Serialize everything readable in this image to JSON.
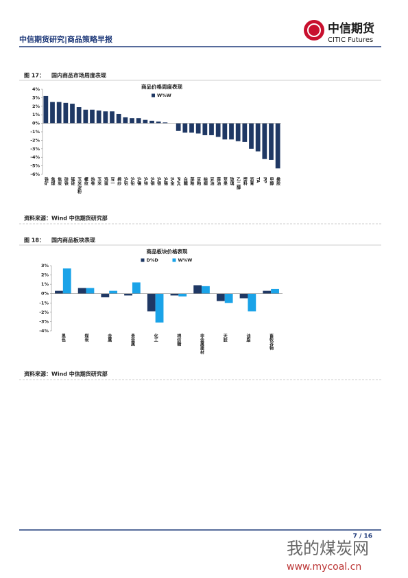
{
  "header": {
    "title": "中信期货研究|商品策略早报",
    "logo_cn": "中信期货",
    "logo_en": "CITIC Futures"
  },
  "figures": [
    {
      "label": "图 17：",
      "caption": "国内商品市场周度表现",
      "source": "资料来源：Wind 中信期货研究部"
    },
    {
      "label": "图 18：",
      "caption": "国内商品板块表现",
      "source": "资料来源：Wind 中信期货研究部"
    }
  ],
  "chart_data": [
    {
      "type": "bar",
      "title": "商品价格周度表现",
      "categories": [
        "铁矿",
        "焦煤",
        "焦炭",
        "硅铁",
        "锰硅",
        "玉米淀粉",
        "螺纹",
        "热卷",
        "玉米",
        "鸡蛋",
        "豆一",
        "棉纱",
        "沪铝",
        "沪铅",
        "沪镍",
        "沪锌",
        "沪铜",
        "沪银",
        "沪锡",
        "沪金",
        "PVC",
        "白糖",
        "菜粕",
        "豆粕",
        "棕榈",
        "豆油",
        "菜油",
        "苹果",
        "玻璃",
        "乙二醇",
        "塑料",
        "沥青",
        "TA",
        "PP",
        "甲醇",
        "橡胶"
      ],
      "series": [
        {
          "name": "W%W",
          "color": "#1f3864",
          "values": [
            3.2,
            2.5,
            2.5,
            2.4,
            2.3,
            1.9,
            1.6,
            1.6,
            1.5,
            1.4,
            1.4,
            1.1,
            0.7,
            0.6,
            0.6,
            0.4,
            0.3,
            0.2,
            0.1,
            0,
            -0.9,
            -1.1,
            -1.1,
            -1.2,
            -1.4,
            -1.4,
            -1.6,
            -1.9,
            -1.9,
            -2.1,
            -2.2,
            -3.0,
            -3.3,
            -4.2,
            -4.3,
            -5.3
          ]
        }
      ],
      "ylim": [
        -6,
        4
      ],
      "yticks": [
        {
          "value": -6,
          "label": "-6%"
        },
        {
          "value": -5,
          "label": "-5%"
        },
        {
          "value": -4,
          "label": "-4%"
        },
        {
          "value": -3,
          "label": "-3%"
        },
        {
          "value": -2,
          "label": "-2%"
        },
        {
          "value": -1,
          "label": "-1%"
        },
        {
          "value": 0,
          "label": "0%"
        },
        {
          "value": 1,
          "label": "1%"
        },
        {
          "value": 2,
          "label": "2%"
        },
        {
          "value": 3,
          "label": "3%"
        },
        {
          "value": 4,
          "label": "4%"
        }
      ]
    },
    {
      "type": "bar",
      "title": "商品板块价格表现",
      "categories": [
        "黑色",
        "煤炭",
        "金属",
        "贵金属",
        "化工",
        "棉纺糖",
        "非金属建材",
        "天胶",
        "油脂",
        "畜牧谷物"
      ],
      "series": [
        {
          "name": "D%D",
          "color": "#1f3864",
          "values": [
            0.3,
            0.6,
            -0.4,
            -0.2,
            -1.9,
            -0.2,
            0.9,
            -0.8,
            -0.5,
            0.3
          ]
        },
        {
          "name": "W%W",
          "color": "#1aa3e8",
          "values": [
            2.7,
            0.6,
            0.3,
            1.2,
            -3.1,
            -0.3,
            0.8,
            -1.0,
            -1.9,
            0.5
          ]
        }
      ],
      "ylim": [
        -4,
        3
      ],
      "yticks": [
        {
          "value": -4,
          "label": "-4%"
        },
        {
          "value": -3,
          "label": "-3%"
        },
        {
          "value": -2,
          "label": "-2%"
        },
        {
          "value": -1,
          "label": "-1%"
        },
        {
          "value": 0,
          "label": "0%"
        },
        {
          "value": 1,
          "label": "1%"
        },
        {
          "value": 2,
          "label": "2%"
        },
        {
          "value": 3,
          "label": "3%"
        }
      ]
    }
  ],
  "footer": {
    "page": "7 / 16"
  },
  "watermark": {
    "cn": "我的煤炭网",
    "url": "www.mycoal.cn"
  }
}
